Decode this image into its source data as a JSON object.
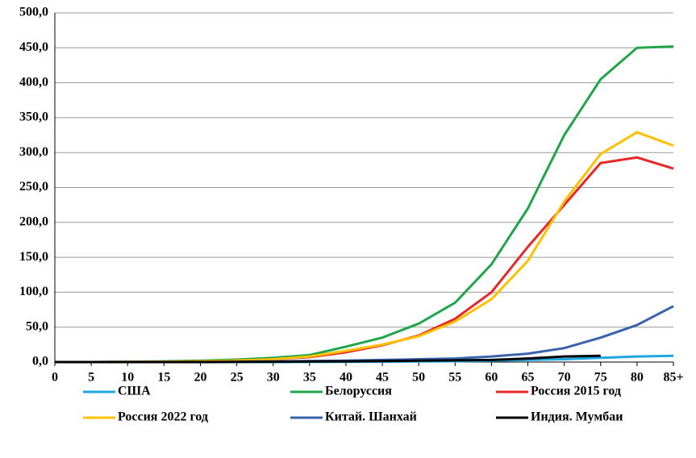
{
  "chart_data": {
    "type": "line",
    "categories": [
      "0",
      "5",
      "10",
      "15",
      "20",
      "25",
      "30",
      "35",
      "40",
      "45",
      "50",
      "55",
      "60",
      "65",
      "70",
      "75",
      "80",
      "85+"
    ],
    "series": [
      {
        "name": "США",
        "color": "#1fa8e0",
        "values": [
          0,
          0,
          0,
          0,
          0,
          0,
          0,
          0.2,
          0.3,
          0.5,
          0.8,
          1.2,
          2,
          3,
          4,
          6,
          8,
          9
        ]
      },
      {
        "name": "Белоруссия",
        "color": "#1fa54a",
        "values": [
          0,
          0,
          0.3,
          1,
          2,
          3.5,
          6,
          10,
          22,
          35,
          55,
          85,
          140,
          220,
          325,
          405,
          450,
          452
        ]
      },
      {
        "name": "Россия 2015 год",
        "color": "#e8262a",
        "values": [
          0,
          0,
          0.2,
          0.5,
          1,
          2,
          4,
          7,
          14,
          24,
          38,
          62,
          100,
          165,
          225,
          285,
          293,
          277
        ]
      },
      {
        "name": "Россия 2022 год",
        "color": "#ffc000",
        "values": [
          0,
          0,
          0.2,
          0.5,
          1,
          2,
          4,
          8,
          16,
          25,
          37,
          58,
          90,
          145,
          230,
          298,
          329,
          310
        ]
      },
      {
        "name": "Китай. Шанхай",
        "color": "#3a62ad",
        "values": [
          0,
          0,
          0,
          0,
          0,
          0.5,
          1,
          1.5,
          2,
          3,
          4,
          5,
          8,
          12,
          20,
          35,
          53,
          80
        ]
      },
      {
        "name": "Индия. Мумбаи",
        "color": "#000000",
        "values": [
          0,
          0,
          0,
          0,
          0,
          0.3,
          0.5,
          0.8,
          1,
          1.5,
          2,
          2.5,
          3,
          5,
          8,
          9,
          null,
          null
        ]
      }
    ],
    "ylim": [
      0,
      500
    ],
    "yticks": [
      {
        "value": 0,
        "label": "0,0"
      },
      {
        "value": 50,
        "label": "50,0"
      },
      {
        "value": 100,
        "label": "100,0"
      },
      {
        "value": 150,
        "label": "150,0"
      },
      {
        "value": 200,
        "label": "200,0"
      },
      {
        "value": 250,
        "label": "250,0"
      },
      {
        "value": 300,
        "label": "300,0"
      },
      {
        "value": 350,
        "label": "350,0"
      },
      {
        "value": 400,
        "label": "400,0"
      },
      {
        "value": 450,
        "label": "450,0"
      },
      {
        "value": 500,
        "label": "500,0"
      }
    ],
    "grid": true,
    "legend": "bottom"
  }
}
